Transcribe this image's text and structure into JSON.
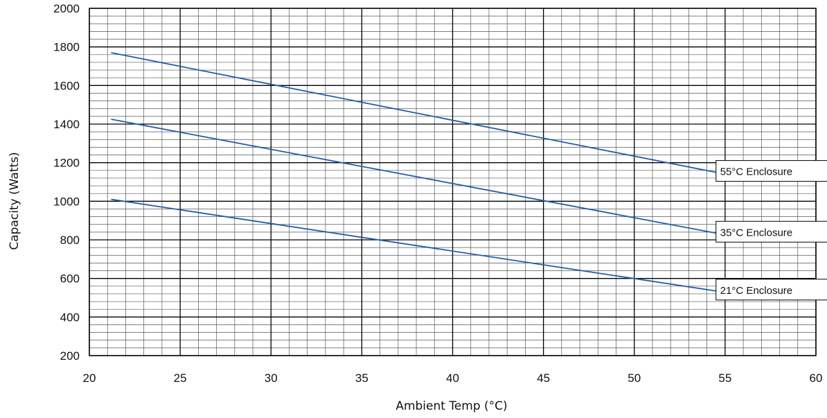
{
  "chart_data": {
    "type": "line",
    "title": "",
    "xlabel": "Ambient Temp (°C)",
    "ylabel": "Capacity (Watts)",
    "xlim": [
      20,
      60
    ],
    "ylim": [
      200,
      2000
    ],
    "x_ticks": [
      "20",
      "25",
      "30",
      "35",
      "40",
      "45",
      "50",
      "55",
      "60"
    ],
    "y_ticks": [
      "200",
      "400",
      "600",
      "800",
      "1000",
      "1200",
      "1400",
      "1600",
      "1800",
      "2000"
    ],
    "x_minor_step": 1,
    "y_minor_step": 40,
    "grid": true,
    "line_color": "#1f5fa8",
    "series": [
      {
        "name": "55°C Enclosure",
        "x": [
          21.2,
          54.5
        ],
        "y": [
          1770,
          1150
        ]
      },
      {
        "name": "35°C Enclosure",
        "x": [
          21.2,
          54.5
        ],
        "y": [
          1425,
          835
        ]
      },
      {
        "name": "21°C Enclosure",
        "x": [
          21.2,
          54.5
        ],
        "y": [
          1010,
          535
        ]
      }
    ]
  }
}
